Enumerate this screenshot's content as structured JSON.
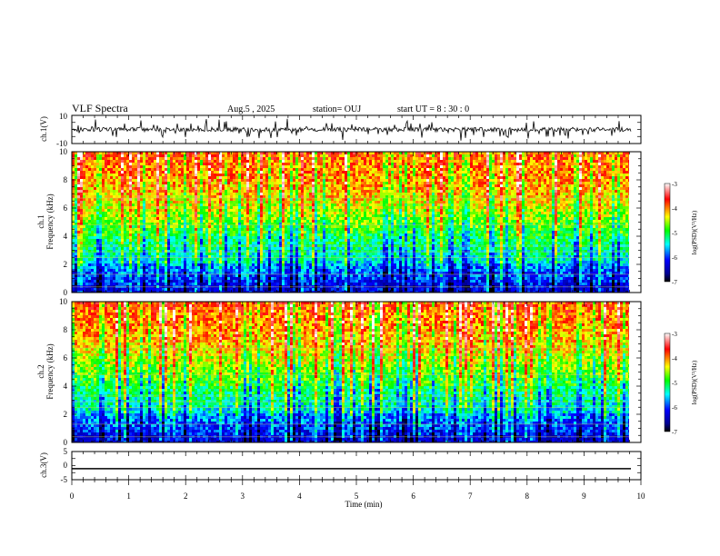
{
  "chart_data": {
    "type": "heatmap",
    "title": "VLF Spectra",
    "date": "Aug.5 , 2025",
    "station": "station= OUJ",
    "start_ut": "start UT = 8 : 30 : 0",
    "xlabel": "Time (min)",
    "x_ticks": [
      "0",
      "1",
      "2",
      "3",
      "4",
      "5",
      "6",
      "7",
      "8",
      "9",
      "10"
    ],
    "xlim": [
      0,
      10
    ],
    "data_end_min": 9.82,
    "panels": [
      {
        "id": "ch1_waveform",
        "type": "line",
        "ylabel": "ch.1(V)",
        "ylim": [
          -10,
          10
        ],
        "y_ticks": [
          "10",
          "-10"
        ],
        "baseline": 0
      },
      {
        "id": "ch1_spectrogram",
        "type": "heatmap",
        "ylabel": [
          "ch.1",
          "Frequency (kHz)"
        ],
        "ylim": [
          0,
          10
        ],
        "y_ticks": [
          "0",
          "2",
          "4",
          "6",
          "8",
          "10"
        ],
        "colorbar": {
          "label": "log(PSD)(V²/Hz)",
          "range": [
            -7,
            -3
          ],
          "ticks": [
            "-3",
            "-4",
            "-5",
            "-6",
            "-7"
          ]
        }
      },
      {
        "id": "ch2_spectrogram",
        "type": "heatmap",
        "ylabel": [
          "ch.2",
          "Frequency (kHz)"
        ],
        "ylim": [
          0,
          10
        ],
        "y_ticks": [
          "0",
          "2",
          "4",
          "6",
          "8",
          "10"
        ],
        "colorbar": {
          "label": "log(PSD)(V²/Hz)",
          "range": [
            -7,
            -3
          ],
          "ticks": [
            "-3",
            "-4",
            "-5",
            "-6",
            "-7"
          ]
        }
      },
      {
        "id": "ch3_waveform",
        "type": "line",
        "ylabel": "ch.3(V)",
        "ylim": [
          -5,
          5
        ],
        "y_ticks": [
          "5",
          "0",
          "-5"
        ],
        "baseline": -1.1
      }
    ],
    "colors": {
      "colormap": [
        "#000080",
        "#0000ff",
        "#00ffff",
        "#00ff00",
        "#ffff00",
        "#ff0000",
        "#ffffff"
      ],
      "axis": "#000000",
      "trace": "#000000"
    }
  }
}
